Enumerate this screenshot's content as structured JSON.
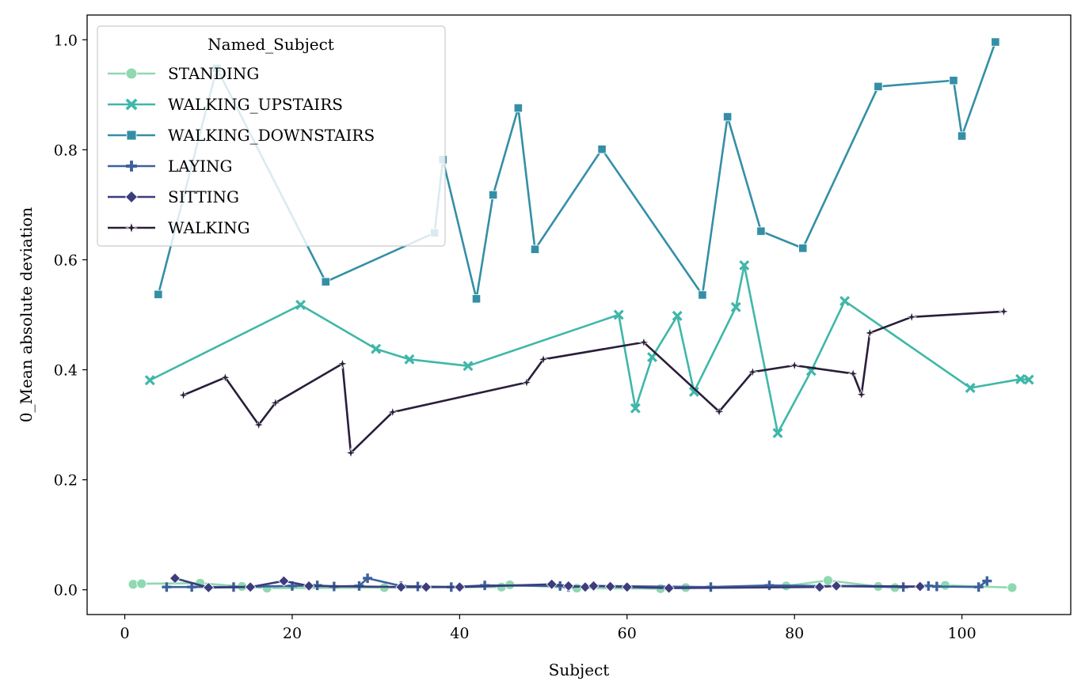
{
  "chart_data": {
    "type": "line",
    "xlabel": "Subject",
    "ylabel": "0_Mean absolute deviation",
    "xlim": [
      -4.5,
      113
    ],
    "ylim": [
      -0.045,
      1.045
    ],
    "xticks": [
      0,
      20,
      40,
      60,
      80,
      100
    ],
    "yticks": [
      0.0,
      0.2,
      0.4,
      0.6,
      0.8,
      1.0
    ],
    "xtick_labels": [
      "0",
      "20",
      "40",
      "60",
      "80",
      "100"
    ],
    "ytick_labels": [
      "0.0",
      "0.2",
      "0.4",
      "0.6",
      "0.8",
      "1.0"
    ],
    "grid": false,
    "legend": {
      "title": "Named_Subject",
      "placement": "top-left"
    },
    "series": [
      {
        "name": "STANDING",
        "color": "#8fd9b0",
        "marker": "circle",
        "points": [
          [
            1,
            0.01
          ],
          [
            2,
            0.011
          ],
          [
            9,
            0.012
          ],
          [
            14,
            0.006
          ],
          [
            17,
            0.003
          ],
          [
            31,
            0.004
          ],
          [
            45,
            0.005
          ],
          [
            46,
            0.009
          ],
          [
            54,
            0.003
          ],
          [
            64,
            0.002
          ],
          [
            67,
            0.004
          ],
          [
            79,
            0.007
          ],
          [
            84,
            0.017
          ],
          [
            90,
            0.006
          ],
          [
            92,
            0.004
          ],
          [
            98,
            0.008
          ],
          [
            106,
            0.004
          ]
        ]
      },
      {
        "name": "WALKING_UPSTAIRS",
        "color": "#3fb7a9",
        "marker": "x",
        "points": [
          [
            3,
            0.381
          ],
          [
            21,
            0.518
          ],
          [
            30,
            0.438
          ],
          [
            34,
            0.419
          ],
          [
            41,
            0.407
          ],
          [
            59,
            0.5
          ],
          [
            61,
            0.33
          ],
          [
            63,
            0.423
          ],
          [
            66,
            0.498
          ],
          [
            68,
            0.36
          ],
          [
            73,
            0.514
          ],
          [
            74,
            0.59
          ],
          [
            78,
            0.285
          ],
          [
            82,
            0.398
          ],
          [
            86,
            0.525
          ],
          [
            101,
            0.367
          ],
          [
            107,
            0.383
          ],
          [
            108,
            0.382
          ]
        ]
      },
      {
        "name": "WALKING_DOWNSTAIRS",
        "color": "#348fa6",
        "marker": "square",
        "points": [
          [
            4,
            0.537
          ],
          [
            11,
            0.948
          ],
          [
            24,
            0.56
          ],
          [
            37,
            0.649
          ],
          [
            38,
            0.782
          ],
          [
            42,
            0.529
          ],
          [
            44,
            0.718
          ],
          [
            47,
            0.876
          ],
          [
            49,
            0.619
          ],
          [
            57,
            0.801
          ],
          [
            69,
            0.536
          ],
          [
            72,
            0.86
          ],
          [
            76,
            0.652
          ],
          [
            81,
            0.621
          ],
          [
            90,
            0.915
          ],
          [
            99,
            0.926
          ],
          [
            100,
            0.825
          ],
          [
            104,
            0.996
          ]
        ]
      },
      {
        "name": "LAYING",
        "color": "#3b629c",
        "marker": "plus",
        "points": [
          [
            5,
            0.005
          ],
          [
            8,
            0.005
          ],
          [
            13,
            0.005
          ],
          [
            20,
            0.007
          ],
          [
            23,
            0.008
          ],
          [
            25,
            0.006
          ],
          [
            28,
            0.007
          ],
          [
            29,
            0.021
          ],
          [
            33,
            0.007
          ],
          [
            35,
            0.006
          ],
          [
            39,
            0.005
          ],
          [
            43,
            0.008
          ],
          [
            52,
            0.007
          ],
          [
            53,
            0.005
          ],
          [
            56,
            0.007
          ],
          [
            70,
            0.005
          ],
          [
            77,
            0.008
          ],
          [
            93,
            0.005
          ],
          [
            96,
            0.007
          ],
          [
            97,
            0.006
          ],
          [
            102,
            0.005
          ],
          [
            103,
            0.016
          ]
        ]
      },
      {
        "name": "SITTING",
        "color": "#3c3c7e",
        "marker": "diamond",
        "points": [
          [
            6,
            0.021
          ],
          [
            10,
            0.004
          ],
          [
            15,
            0.005
          ],
          [
            19,
            0.016
          ],
          [
            22,
            0.007
          ],
          [
            33,
            0.005
          ],
          [
            36,
            0.005
          ],
          [
            40,
            0.005
          ],
          [
            51,
            0.01
          ],
          [
            53,
            0.007
          ],
          [
            55,
            0.005
          ],
          [
            56,
            0.007
          ],
          [
            58,
            0.006
          ],
          [
            60,
            0.005
          ],
          [
            65,
            0.003
          ],
          [
            83,
            0.005
          ],
          [
            85,
            0.007
          ],
          [
            95,
            0.006
          ]
        ]
      },
      {
        "name": "WALKING",
        "color": "#2a1e3b",
        "marker": "star",
        "points": [
          [
            7,
            0.354
          ],
          [
            12,
            0.386
          ],
          [
            16,
            0.3
          ],
          [
            18,
            0.34
          ],
          [
            26,
            0.411
          ],
          [
            27,
            0.249
          ],
          [
            32,
            0.323
          ],
          [
            48,
            0.377
          ],
          [
            50,
            0.419
          ],
          [
            62,
            0.45
          ],
          [
            71,
            0.324
          ],
          [
            75,
            0.396
          ],
          [
            80,
            0.408
          ],
          [
            87,
            0.393
          ],
          [
            88,
            0.355
          ],
          [
            89,
            0.467
          ],
          [
            94,
            0.496
          ],
          [
            105,
            0.506
          ]
        ]
      }
    ]
  }
}
